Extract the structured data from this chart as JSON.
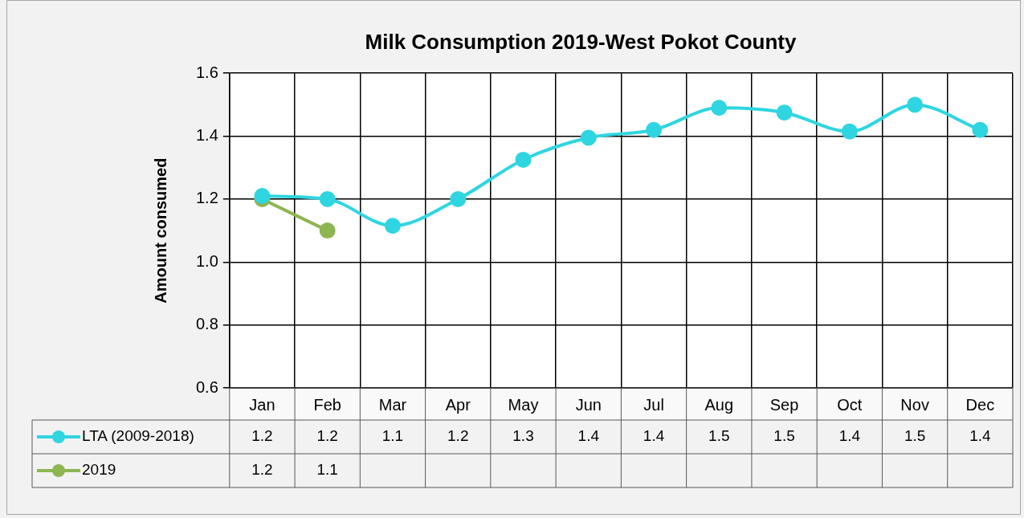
{
  "chart_data": {
    "type": "line",
    "title": "Milk Consumption 2019-West Pokot County",
    "ylabel": "Amount consumed",
    "categories": [
      "Jan",
      "Feb",
      "Mar",
      "Apr",
      "May",
      "Jun",
      "Jul",
      "Aug",
      "Sep",
      "Oct",
      "Nov",
      "Dec"
    ],
    "series": [
      {
        "name": "LTA (2009-2018)",
        "color": "#2fd5e0",
        "values": [
          1.21,
          1.2,
          1.115,
          1.2,
          1.325,
          1.395,
          1.42,
          1.49,
          1.475,
          1.415,
          1.5,
          1.42
        ],
        "value_labels": [
          "1.2",
          "1.2",
          "1.1",
          "1.2",
          "1.3",
          "1.4",
          "1.4",
          "1.5",
          "1.5",
          "1.4",
          "1.5",
          "1.4"
        ]
      },
      {
        "name": "2019",
        "color": "#8db552",
        "values": [
          1.2,
          1.1,
          null,
          null,
          null,
          null,
          null,
          null,
          null,
          null,
          null,
          null
        ],
        "value_labels": [
          "1.2",
          "1.1",
          null,
          null,
          null,
          null,
          null,
          null,
          null,
          null,
          null,
          null
        ]
      }
    ],
    "ylim": [
      0.6,
      1.6
    ],
    "yticks": [
      0.6,
      0.8,
      {
        "value": 1,
        "label": "1.0"
      },
      1.2,
      1.4,
      1.6
    ],
    "grid": true,
    "legend": "bottom",
    "marker": "circle",
    "line_style": "solid"
  }
}
